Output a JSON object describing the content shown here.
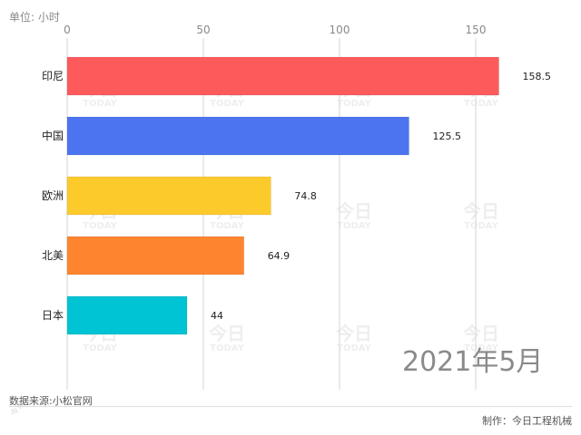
{
  "unit_label": "单位: 小时",
  "period_label": "2021年5月",
  "source_label": "数据来源:小松官网",
  "credit_label": "制作：今日工程机械",
  "watermark": {
    "logo_text": "今日",
    "logo_sub": "TODAY",
    "corner_text": "今日"
  },
  "colors": {
    "grid": "#d6d6d6",
    "axis_text": "#8a8a8a",
    "bar_label": "#222222",
    "category_label": "#222222"
  },
  "chart_data": {
    "type": "bar",
    "orientation": "horizontal",
    "categories": [
      "印尼",
      "中国",
      "欧洲",
      "北美",
      "日本"
    ],
    "values": [
      158.5,
      125.5,
      74.8,
      64.9,
      44
    ],
    "value_labels": [
      "158.5",
      "125.5",
      "74.8",
      "64.9",
      "44"
    ],
    "bar_colors": [
      "#fd5a5c",
      "#4d74f0",
      "#fdca2c",
      "#fd8530",
      "#00c3d3"
    ],
    "xlim": [
      0,
      160
    ],
    "xticks": [
      0,
      50,
      100,
      150
    ],
    "xtick_labels": [
      "0",
      "50",
      "100",
      "150"
    ],
    "xaxis_position": "top",
    "grid": true,
    "title": "",
    "xlabel": "",
    "ylabel": ""
  }
}
